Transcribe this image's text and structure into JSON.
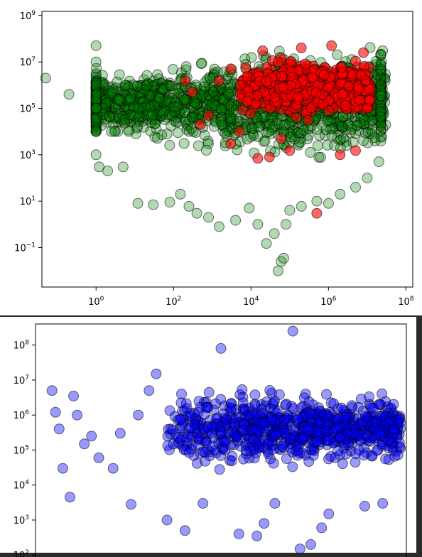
{
  "chart_data": [
    {
      "type": "scatter",
      "title": "",
      "xlabel": "",
      "ylabel": "",
      "x_scale": "log",
      "y_scale": "log",
      "xlim": [
        0.04,
        150000000
      ],
      "ylim": [
        0.002,
        1500000000
      ],
      "x_ticks": [
        {
          "base": "10",
          "exp": "0",
          "value": 1
        },
        {
          "base": "10",
          "exp": "2",
          "value": 100
        },
        {
          "base": "10",
          "exp": "4",
          "value": 10000
        },
        {
          "base": "10",
          "exp": "6",
          "value": 1000000
        },
        {
          "base": "10",
          "exp": "8",
          "value": 100000000
        }
      ],
      "y_ticks": [
        {
          "base": "10",
          "exp": "−1",
          "value": 0.1
        },
        {
          "base": "10",
          "exp": "1",
          "value": 10
        },
        {
          "base": "10",
          "exp": "3",
          "value": 1000
        },
        {
          "base": "10",
          "exp": "5",
          "value": 100000
        },
        {
          "base": "10",
          "exp": "7",
          "value": 10000000
        },
        {
          "base": "10",
          "exp": "9",
          "value": 1000000000
        }
      ],
      "grid": false,
      "legend": "none",
      "series": [
        {
          "color": "#008000",
          "alpha": 0.3,
          "edgecolor": "#000000",
          "approx_count": 4000,
          "x": [
            0.05,
            0.2,
            1,
            1,
            1,
            1,
            1,
            1,
            1.2,
            2,
            5,
            12,
            30,
            80,
            150,
            250,
            400,
            800,
            1500,
            4000,
            9000,
            15000,
            25000,
            40000,
            50000,
            60000,
            70000,
            80000,
            100000,
            200000,
            500000,
            1000000,
            2000000,
            5000000,
            10000000,
            20000000,
            22000000,
            25000000
          ],
          "y": [
            2000000,
            400000,
            50000000,
            10000000,
            1000000,
            100000,
            10000,
            1000,
            300,
            200,
            300,
            8,
            7,
            9,
            20,
            6,
            3,
            2,
            0.8,
            1.5,
            5,
            1,
            0.15,
            0.4,
            0.01,
            0.025,
            0.035,
            1,
            4,
            6,
            10,
            8,
            20,
            40,
            100,
            500,
            5000000,
            30000000
          ],
          "cluster": {
            "x_range": [
              1,
              30000000
            ],
            "y_range": [
              10,
              80000000
            ]
          }
        },
        {
          "color": "#ff0000",
          "alpha": 0.6,
          "edgecolor": "#000000",
          "approx_count": 1500,
          "x": [
            200,
            300,
            500,
            800,
            1500,
            3000,
            5000,
            8000,
            15000,
            30000,
            60000,
            100000,
            150000,
            300000,
            500000,
            1000000,
            2000000,
            5000000,
            10000000,
            3000,
            20000,
            50000,
            200000,
            1200000,
            8000000
          ],
          "y": [
            1500000,
            500000,
            20000,
            50000,
            1500000,
            3000,
            10000,
            200000,
            700,
            800,
            5000,
            1500,
            40000,
            30000,
            3,
            80000,
            1000,
            1500,
            100000,
            5000000,
            30000000,
            10000000,
            40000000,
            50000000,
            25000000
          ],
          "cluster": {
            "x_range": [
              5000,
              12000000
            ],
            "y_range": [
              10000,
              60000000
            ]
          }
        }
      ]
    },
    {
      "type": "scatter",
      "title": "",
      "xlabel": "",
      "ylabel": "",
      "x_scale": "log",
      "y_scale": "log",
      "ylim": [
        80,
        400000000
      ],
      "y_ticks": [
        {
          "base": "10",
          "exp": "2",
          "value": 100
        },
        {
          "base": "10",
          "exp": "3",
          "value": 1000
        },
        {
          "base": "10",
          "exp": "4",
          "value": 10000
        },
        {
          "base": "10",
          "exp": "5",
          "value": 100000
        },
        {
          "base": "10",
          "exp": "6",
          "value": 1000000
        },
        {
          "base": "10",
          "exp": "7",
          "value": 10000000
        },
        {
          "base": "10",
          "exp": "8",
          "value": 100000000
        }
      ],
      "grid": false,
      "legend": "none",
      "series": [
        {
          "color": "#0000ff",
          "alpha": 0.4,
          "edgecolor": "#000000",
          "approx_count": 1500,
          "x_frac": [
            0.03,
            0.04,
            0.05,
            0.06,
            0.08,
            0.09,
            0.1,
            0.12,
            0.14,
            0.16,
            0.2,
            0.22,
            0.25,
            0.27,
            0.3,
            0.32,
            0.35,
            0.4,
            0.45,
            0.5,
            0.55,
            0.6,
            0.62,
            0.65,
            0.7,
            0.72,
            0.75,
            0.78,
            0.8,
            0.85,
            0.9,
            0.95,
            0.98
          ],
          "y": [
            5000000,
            1200000,
            400000,
            30000,
            4500,
            3500000,
            1000000,
            150000,
            250000,
            60000,
            30000,
            300000,
            2800,
            1000000,
            5000000,
            15000000,
            1000,
            500,
            3000,
            80000000,
            400,
            350,
            800,
            3000,
            250000000,
            150,
            200,
            600,
            1500,
            300000,
            2500,
            3000,
            400000
          ],
          "cluster": {
            "x_frac_range": [
              0.35,
              1.0
            ],
            "y_range": [
              5000,
              15000000
            ]
          }
        }
      ]
    }
  ]
}
